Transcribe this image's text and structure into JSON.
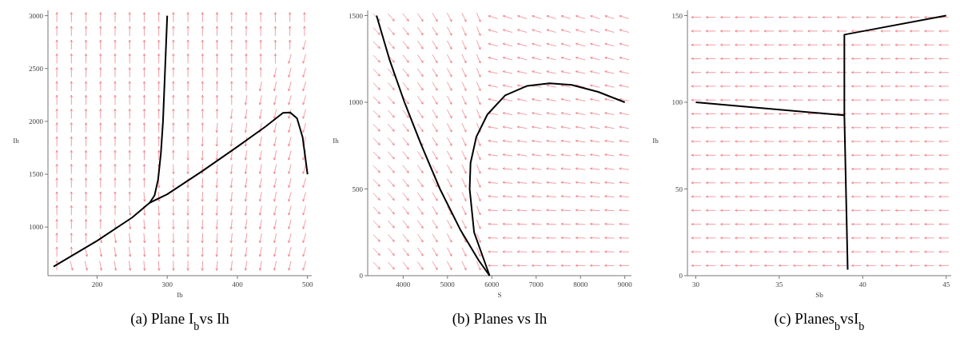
{
  "chart_data": [
    {
      "type": "line",
      "xlabel": "Ib",
      "ylabel": "Ih",
      "annotations": [
        "(a) Plane I$_{b}$vs Ih"
      ],
      "xlim": [
        130,
        506
      ],
      "ylim": [
        540,
        3050
      ],
      "xticks": [
        200,
        300,
        400,
        500
      ],
      "yticks": [
        1000,
        1500,
        2000,
        2500,
        3000
      ],
      "series": [
        {
          "color": "#000000",
          "x": [
            138,
            200,
            250,
            275,
            300,
            350,
            400,
            440,
            465,
            475,
            485,
            493,
            500
          ],
          "values": [
            626,
            870,
            1090,
            1230,
            1310,
            1530,
            1760,
            1950,
            2080,
            2085,
            2030,
            1850,
            1500
          ]
        },
        {
          "color": "#000000",
          "x": [
            275,
            282,
            287,
            291,
            294,
            297,
            300
          ],
          "values": [
            1230,
            1300,
            1450,
            1700,
            2000,
            2500,
            3000
          ]
        }
      ]
    },
    {
      "type": "line",
      "xlabel": "S",
      "ylabel": "Ih",
      "annotations": [
        "(b) Planes vs Ih"
      ],
      "xlim": [
        3200,
        9150
      ],
      "ylim": [
        0,
        1530
      ],
      "xticks": [
        4000,
        5000,
        6000,
        7000,
        8000,
        9000
      ],
      "yticks": [
        0,
        500,
        1000,
        1500
      ],
      "series": [
        {
          "color": "#000000",
          "x": [
            3400,
            3700,
            4030,
            4400,
            4830,
            5300,
            5700,
            5950
          ],
          "values": [
            1500,
            1240,
            1000,
            760,
            500,
            260,
            90,
            0
          ]
        },
        {
          "color": "#000000",
          "x": [
            5950,
            5600,
            5500,
            5520,
            5650,
            5900,
            6300,
            6800,
            7300,
            7800,
            8400,
            9000
          ],
          "values": [
            0,
            250,
            500,
            650,
            800,
            930,
            1040,
            1095,
            1110,
            1100,
            1060,
            1000
          ]
        }
      ]
    },
    {
      "type": "line",
      "xlabel": "Sb",
      "ylabel": "Ib",
      "annotations": [
        "(c) Planes$_{b}$vsI$_{b}$"
      ],
      "xlim": [
        29.5,
        45.3
      ],
      "ylim": [
        0,
        153
      ],
      "xticks": [
        30,
        35,
        40,
        45
      ],
      "yticks": [
        0,
        50,
        100,
        150
      ],
      "series": [
        {
          "color": "#000000",
          "x": [
            30,
            38.9
          ],
          "values": [
            100,
            92.5
          ]
        },
        {
          "color": "#000000",
          "x": [
            39.1,
            38.9,
            38.9,
            45
          ],
          "values": [
            3.5,
            92.5,
            139,
            150
          ]
        }
      ]
    }
  ]
}
